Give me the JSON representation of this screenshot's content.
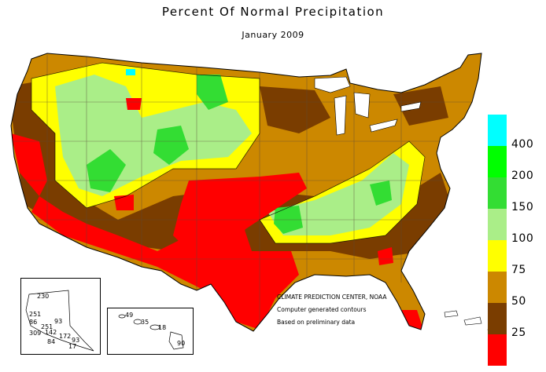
{
  "title": "Percent Of Normal Precipitation",
  "subtitle": "January 2009",
  "legend": {
    "classes": [
      {
        "label": "",
        "color": "#00ffff"
      },
      {
        "label": "400",
        "color": "#00ff00"
      },
      {
        "label": "200",
        "color": "#33dd33"
      },
      {
        "label": "150",
        "color": "#aaee88"
      },
      {
        "label": "100",
        "color": "#ffff00"
      },
      {
        "label": "75",
        "color": "#cc8800"
      },
      {
        "label": "50",
        "color": "#7a3d00"
      },
      {
        "label": "25",
        "color": "#ff0000"
      }
    ]
  },
  "credits": {
    "line1": "CLIMATE PREDICTION CENTER, NOAA",
    "line2": "Computer generated contours",
    "line3": "Based on preliminary data"
  },
  "alaska_values": [
    "230",
    "251",
    "86",
    "93",
    "251",
    "309",
    "142",
    "84",
    "172",
    "93",
    "17"
  ],
  "hawaii_values": [
    "49",
    "35",
    "18",
    "90"
  ],
  "colors": {
    "red": "#ff0000",
    "brown": "#7a3d00",
    "orange": "#cc8800",
    "yellow": "#ffff00",
    "lightgreen": "#aaee88",
    "green": "#33dd33",
    "brightgreen": "#00ff00",
    "cyan": "#00ffff"
  }
}
